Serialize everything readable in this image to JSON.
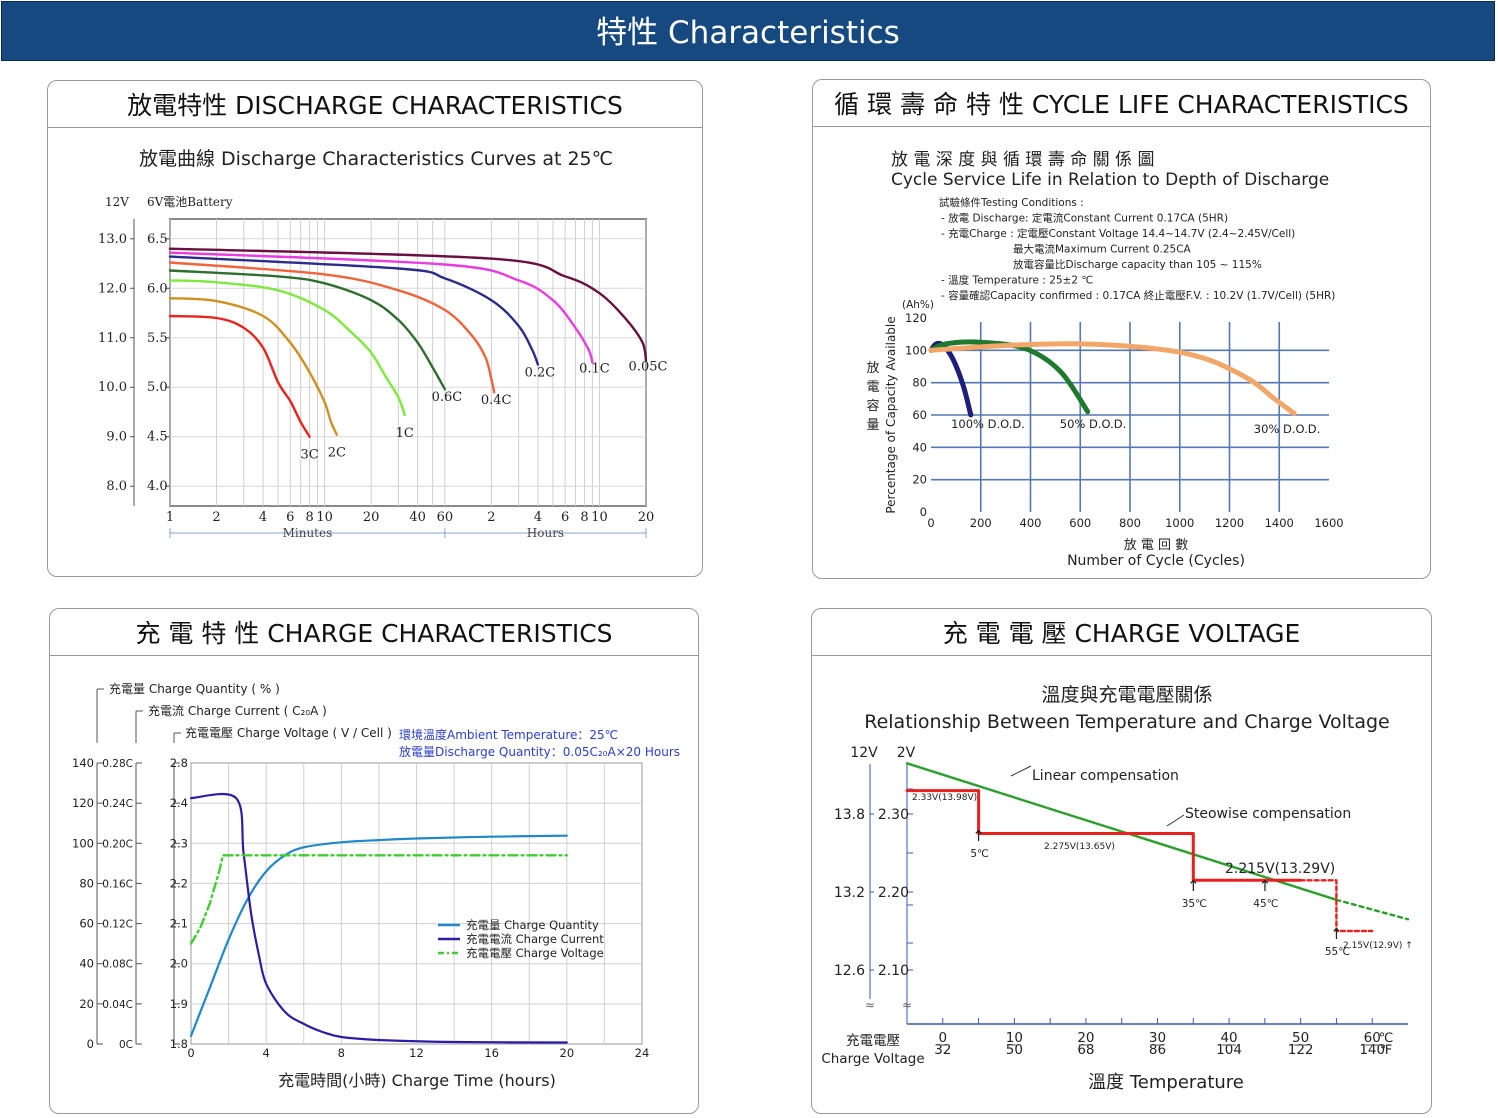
{
  "header": {
    "title": "特性  Characteristics"
  },
  "panels": {
    "discharge": {
      "title": "放電特性 DISCHARGE CHARACTERISTICS"
    },
    "cycle": {
      "title": "循 環 壽 命 特 性 CYCLE LIFE CHARACTERISTICS"
    },
    "charge": {
      "title": "充 電 特 性  CHARGE CHARACTERISTICS"
    },
    "voltage": {
      "title": "充 電 電 壓  CHARGE VOLTAGE"
    }
  },
  "chart_data": [
    {
      "type": "line",
      "title": "放電曲線 Discharge Characteristics Curves at 25℃",
      "battery_label_12v": "12V",
      "battery_label_6v": "6V電池Battery",
      "y_ticks_12v": [
        "13.0",
        "12.0",
        "11.0",
        "10.0",
        "9.0",
        "8.0"
      ],
      "y_ticks_6v": [
        "6.5",
        "6.0",
        "5.5",
        "5.0",
        "4.5",
        "4.0"
      ],
      "x_ticks_minutes": [
        "1",
        "2",
        "4",
        "6",
        "8",
        "10",
        "20",
        "40",
        "60"
      ],
      "x_ticks_hours": [
        "2",
        "4",
        "6",
        "8",
        "10",
        "20"
      ],
      "xlabel_minutes": "Minutes",
      "xlabel_hours": "Hours",
      "ylim_6v": [
        3.8,
        6.7
      ],
      "series": [
        {
          "name": "3C",
          "color": "#e8241c",
          "points": [
            [
              1,
              5.72
            ],
            [
              2,
              5.7
            ],
            [
              3,
              5.6
            ],
            [
              4,
              5.4
            ],
            [
              5,
              5.05
            ],
            [
              6,
              4.86
            ],
            [
              7,
              4.65
            ],
            [
              8,
              4.5
            ]
          ]
        },
        {
          "name": "2C",
          "color": "#d0901f",
          "points": [
            [
              1,
              5.9
            ],
            [
              2,
              5.87
            ],
            [
              4,
              5.72
            ],
            [
              6,
              5.45
            ],
            [
              8,
              5.15
            ],
            [
              10,
              4.85
            ],
            [
              11,
              4.65
            ],
            [
              12,
              4.52
            ]
          ]
        },
        {
          "name": "1C",
          "color": "#7ee83c",
          "points": [
            [
              1,
              6.08
            ],
            [
              2,
              6.06
            ],
            [
              5,
              5.98
            ],
            [
              10,
              5.78
            ],
            [
              15,
              5.55
            ],
            [
              20,
              5.35
            ],
            [
              25,
              5.1
            ],
            [
              30,
              4.9
            ],
            [
              33,
              4.72
            ]
          ]
        },
        {
          "name": "0.6C",
          "color": "#2e6e2e",
          "points": [
            [
              1,
              6.18
            ],
            [
              5,
              6.12
            ],
            [
              10,
              6.05
            ],
            [
              20,
              5.88
            ],
            [
              30,
              5.68
            ],
            [
              40,
              5.45
            ],
            [
              50,
              5.2
            ],
            [
              60,
              4.98
            ]
          ]
        },
        {
          "name": "0.4C",
          "color": "#f0643c",
          "points": [
            [
              1,
              6.26
            ],
            [
              10,
              6.14
            ],
            [
              30,
              5.98
            ],
            [
              60,
              5.78
            ],
            [
              90,
              5.52
            ],
            [
              110,
              5.3
            ],
            [
              120,
              5.08
            ],
            [
              125,
              4.95
            ]
          ]
        },
        {
          "name": "0.2C",
          "color": "#2b2b8c",
          "points": [
            [
              1,
              6.32
            ],
            [
              30,
              6.2
            ],
            [
              60,
              6.1
            ],
            [
              120,
              5.88
            ],
            [
              180,
              5.62
            ],
            [
              220,
              5.38
            ],
            [
              240,
              5.23
            ]
          ]
        },
        {
          "name": "0.1C",
          "color": "#e83ce0",
          "points": [
            [
              1,
              6.36
            ],
            [
              60,
              6.24
            ],
            [
              180,
              6.08
            ],
            [
              300,
              5.88
            ],
            [
              420,
              5.6
            ],
            [
              510,
              5.38
            ],
            [
              540,
              5.25
            ]
          ]
        },
        {
          "name": "0.05C",
          "color": "#6a1040",
          "points": [
            [
              1,
              6.4
            ],
            [
              120,
              6.3
            ],
            [
              360,
              6.12
            ],
            [
              600,
              5.95
            ],
            [
              900,
              5.68
            ],
            [
              1140,
              5.45
            ],
            [
              1200,
              5.27
            ]
          ]
        }
      ]
    },
    {
      "type": "line",
      "title": "放 電 深 度 與 循 環 壽 命 關 係 圖",
      "subtitle": "Cycle Service Life in Relation to Depth of Discharge",
      "conditions": [
        "試驗條件Testing Conditions :",
        "- 放電 Discharge: 定電流Constant Current  0.17CA (5HR)",
        "- 充電Charge : 定電壓Constant Voltage 14.4~14.7V (2.4~2.45V/Cell)",
        "最大電流Maximum Current 0.25CA",
        "放電容量比Discharge capacity than 105 ~ 115%",
        "- 溫度 Temperature : 25±2 ℃",
        "- 容量確認Capacity confirmed : 0.17CA        終止電壓F.V. : 10.2V (1.7V/Cell) (5HR)"
      ],
      "y_unit": "(Ah%)",
      "ylabel": "Percentage of Capacity Available",
      "ylabel_cn": "放 電 容 量",
      "xlabel_cn": "放 電 回 數",
      "xlabel": "Number of Cycle (Cycles)",
      "y_ticks": [
        "120",
        "100",
        "80",
        "60",
        "40",
        "20",
        "0"
      ],
      "x_ticks": [
        "0",
        "200",
        "400",
        "600",
        "800",
        "1000",
        "1200",
        "1400",
        "1600"
      ],
      "xlim": [
        0,
        1600
      ],
      "ylim": [
        0,
        120
      ],
      "series": [
        {
          "name": "100% D.O.D.",
          "color": "#1d1f7a",
          "points": [
            [
              0,
              100
            ],
            [
              20,
              104
            ],
            [
              50,
              103
            ],
            [
              90,
              94
            ],
            [
              130,
              78
            ],
            [
              160,
              60
            ]
          ]
        },
        {
          "name": "50% D.O.D.",
          "color": "#1f7a30",
          "points": [
            [
              0,
              100
            ],
            [
              60,
              104
            ],
            [
              200,
              105
            ],
            [
              380,
              101
            ],
            [
              520,
              87
            ],
            [
              630,
              62
            ]
          ]
        },
        {
          "name": "30% D.O.D.",
          "color": "#f2a768",
          "points": [
            [
              0,
              100
            ],
            [
              300,
              103
            ],
            [
              600,
              104
            ],
            [
              900,
              101
            ],
            [
              1100,
              95
            ],
            [
              1280,
              82
            ],
            [
              1380,
              70
            ],
            [
              1460,
              61
            ]
          ]
        }
      ]
    },
    {
      "type": "line",
      "labels": {
        "quantity": "充電量  Charge Quantity ( % )",
        "current": "充電流  Charge Current ( C₂₀A )",
        "voltage": "充電電壓  Charge Voltage ( V / Cell )"
      },
      "annotation": [
        "環境溫度Ambient Temperature：25℃",
        "放電量Discharge Quantity：0.05C₂₀A×20 Hours"
      ],
      "y_ticks_quantity": [
        "140",
        "120",
        "100",
        "80",
        "60",
        "40",
        "20",
        "0"
      ],
      "y_ticks_current": [
        "0.28C",
        "0.24C",
        "0.20C",
        "0.16C",
        "0.12C",
        "0.08C",
        "0.04C",
        "0C"
      ],
      "y_ticks_voltage": [
        "2.8",
        "2.4",
        "2.3",
        "2.2",
        "2.1",
        "2.0",
        "1.9",
        "1.8"
      ],
      "x_ticks": [
        "0",
        "4",
        "8",
        "12",
        "16",
        "20",
        "24"
      ],
      "xlabel": "充電時間(小時)  Charge Time (hours)",
      "xlim": [
        0,
        24
      ],
      "series": [
        {
          "name": "充電量     Charge Quantity",
          "color": "#1e88c8",
          "dash": "",
          "points": [
            [
              0,
              4
            ],
            [
              1,
              28
            ],
            [
              2,
              52
            ],
            [
              3,
              72
            ],
            [
              4,
              86
            ],
            [
              5,
              94
            ],
            [
              6,
              98
            ],
            [
              8,
              100.5
            ],
            [
              10,
              101.6
            ],
            [
              12,
              102.4
            ],
            [
              16,
              103.3
            ],
            [
              20,
              103.8
            ]
          ]
        },
        {
          "name": "充電電流 Charge Current",
          "color": "#2a1ea6",
          "dash": "",
          "points": [
            [
              0,
              0.245
            ],
            [
              2.4,
              0.245
            ],
            [
              2.8,
              0.19
            ],
            [
              3.2,
              0.13
            ],
            [
              3.6,
              0.09
            ],
            [
              4,
              0.06
            ],
            [
              5,
              0.032
            ],
            [
              6,
              0.02
            ],
            [
              7,
              0.012
            ],
            [
              8,
              0.007
            ],
            [
              10,
              0.004
            ],
            [
              14,
              0.002
            ],
            [
              20,
              0.0015
            ]
          ]
        },
        {
          "name": "充電電壓 Charge Voltage",
          "color": "#3ecf2e",
          "dash": "9 4 2 4",
          "points": [
            [
              0,
              2.05
            ],
            [
              0.5,
              2.09
            ],
            [
              1,
              2.15
            ],
            [
              1.5,
              2.23
            ],
            [
              1.7,
              2.27
            ],
            [
              20,
              2.27
            ]
          ]
        }
      ]
    },
    {
      "type": "line",
      "title": "溫度與充電電壓關係",
      "subtitle": "Relationship Between Temperature and Charge Voltage",
      "y_head_12v": "12V",
      "y_head_2v": "2V",
      "y_ticks_12v": [
        "13.8",
        "13.2",
        "12.6"
      ],
      "y_ticks_2v": [
        "2.30",
        "2.20",
        "2.10"
      ],
      "x_ticks_c": [
        "0",
        "10",
        "20",
        "30",
        "40",
        "50",
        "60"
      ],
      "x_ticks_f": [
        "32",
        "50",
        "68",
        "86",
        "104",
        "122",
        "140"
      ],
      "unit_c": "℃",
      "unit_f": "℉",
      "ylabel": "充電電壓",
      "ylabel_en": "Charge Voltage",
      "xlabel": "溫度   Temperature",
      "xlim": [
        -5,
        65
      ],
      "ylim": [
        2.05,
        2.37
      ],
      "series": [
        {
          "name": "Linear compensation",
          "color": "#2aa02a",
          "points": [
            [
              -5,
              2.365
            ],
            [
              55,
              2.19
            ]
          ]
        },
        {
          "name": "Steowise compensation",
          "color": "#e82020",
          "points": [
            [
              -5,
              2.33
            ],
            [
              5,
              2.33
            ],
            [
              5,
              2.275
            ],
            [
              35,
              2.275
            ],
            [
              35,
              2.215
            ],
            [
              50,
              2.215
            ]
          ]
        }
      ],
      "step_labels": [
        "2.33V(13.98V)",
        "2.275V(13.65V)",
        "2.215V(13.29V)",
        "2.15V(12.9V) ↑"
      ],
      "temp_marks": [
        "5℃",
        "35℃",
        "45℃",
        "55℃"
      ]
    }
  ]
}
